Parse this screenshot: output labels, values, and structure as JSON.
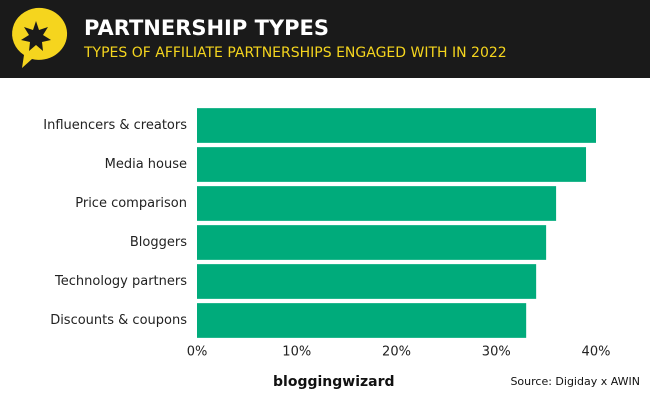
{
  "chart_data": {
    "type": "bar",
    "title": "PARTNERSHIP TYPES",
    "subtitle": "TYPES OF AFFILIATE PARTNERSHIPS ENGAGED WITH IN 2022",
    "categories": [
      "Influencers & creators",
      "Media house",
      "Price comparison",
      "Bloggers",
      "Technology partners",
      "Discounts & coupons"
    ],
    "values": [
      40,
      39,
      36,
      35,
      34,
      33
    ],
    "color": "#00ab7b",
    "xlim": [
      0,
      40
    ],
    "xticks": [
      {
        "value": 0,
        "label": "0%"
      },
      {
        "value": 10,
        "label": "10%"
      },
      {
        "value": 20,
        "label": "20%"
      },
      {
        "value": 30,
        "label": "30%"
      },
      {
        "value": 40,
        "label": "40%"
      }
    ],
    "brand": "bloggingwizard",
    "source": "Source: Digiday x AWIN"
  }
}
